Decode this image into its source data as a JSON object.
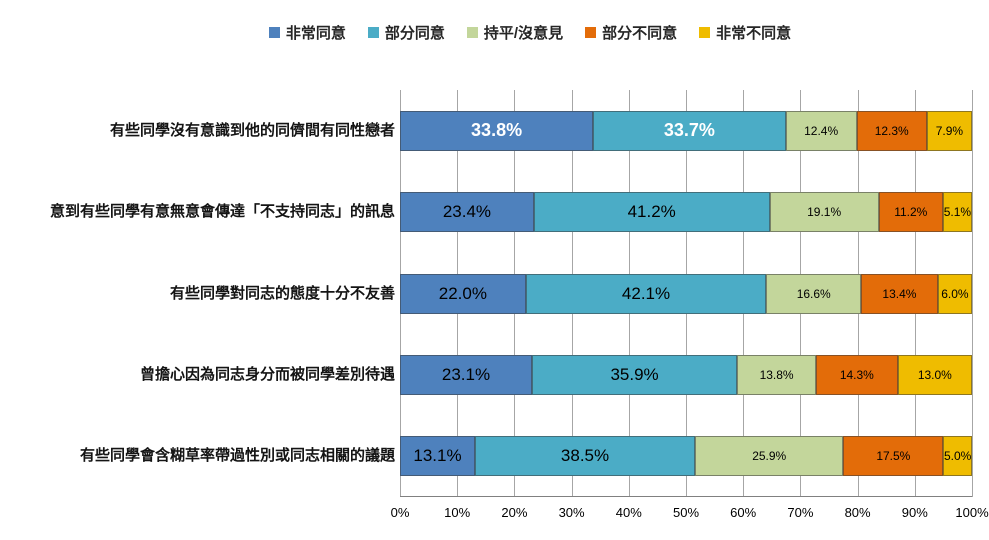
{
  "chart_data": {
    "type": "bar",
    "orientation": "horizontal_stacked",
    "title": "",
    "legend_position": "top",
    "grid": true,
    "xlim": [
      0,
      100
    ],
    "x_tick_labels": [
      "0%",
      "10%",
      "20%",
      "30%",
      "40%",
      "50%",
      "60%",
      "70%",
      "80%",
      "90%",
      "100%"
    ],
    "value_label_format": "0.0%",
    "categories": [
      "有些同學沒有意識到他的同儕間有同性戀者",
      "意到有些同學有意無意會傳達「不支持同志」的訊息",
      "有些同學對同志的態度十分不友善",
      "曾擔心因為同志身分而被同學差別待遇",
      "有些同學會含糊草率帶過性別或同志相關的議題"
    ],
    "series": [
      {
        "name": "非常同意",
        "color": "#4E81BD",
        "values": [
          33.8,
          23.4,
          22.0,
          23.1,
          13.1
        ]
      },
      {
        "name": "部分同意",
        "color": "#4BACC6",
        "values": [
          33.7,
          41.2,
          42.1,
          35.9,
          38.5
        ]
      },
      {
        "name": "持平/沒意見",
        "color": "#C3D69B",
        "values": [
          12.4,
          19.1,
          16.6,
          13.8,
          25.9
        ]
      },
      {
        "name": "部分不同意",
        "color": "#E36C09",
        "values": [
          12.3,
          11.2,
          13.4,
          14.3,
          17.5
        ]
      },
      {
        "name": "非常不同意",
        "color": "#EFBC00",
        "values": [
          7.9,
          5.1,
          6.0,
          13.0,
          5.0
        ]
      }
    ]
  }
}
